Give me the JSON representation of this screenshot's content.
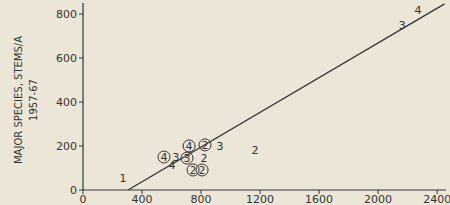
{
  "chart_data": {
    "type": "scatter",
    "ylabel": [
      "MAJOR SPECIES, STEMS/A",
      "1957-67"
    ],
    "xlim": [
      0,
      2460
    ],
    "xticks": [
      0,
      400,
      800,
      1200,
      1600,
      2000,
      2400
    ],
    "ylim": [
      0,
      850
    ],
    "yticks": [
      0,
      200,
      400,
      600,
      800
    ],
    "grid": false,
    "series": [
      {
        "marker": "digit",
        "color": "#333333",
        "x": [
          271,
          1166,
          929,
          631,
          820,
          603,
          2163,
          2271
        ],
        "values": [
          55,
          182,
          200,
          150,
          145,
          114,
          750,
          818
        ],
        "point_labels": [
          "1",
          "2",
          "3",
          "3",
          "2",
          "4",
          "3",
          "4"
        ]
      },
      {
        "marker": "circled-digit",
        "color": "#333333",
        "x": [
          719,
          827,
          549,
          705,
          746,
          807
        ],
        "values": [
          200,
          205,
          150,
          145,
          91,
          91
        ],
        "point_labels": [
          "4",
          "2",
          "4",
          "3",
          "2",
          "2"
        ]
      },
      {
        "type": "line",
        "color": "#333333",
        "x": [
          305,
          2450
        ],
        "values": [
          0,
          846
        ]
      }
    ]
  }
}
